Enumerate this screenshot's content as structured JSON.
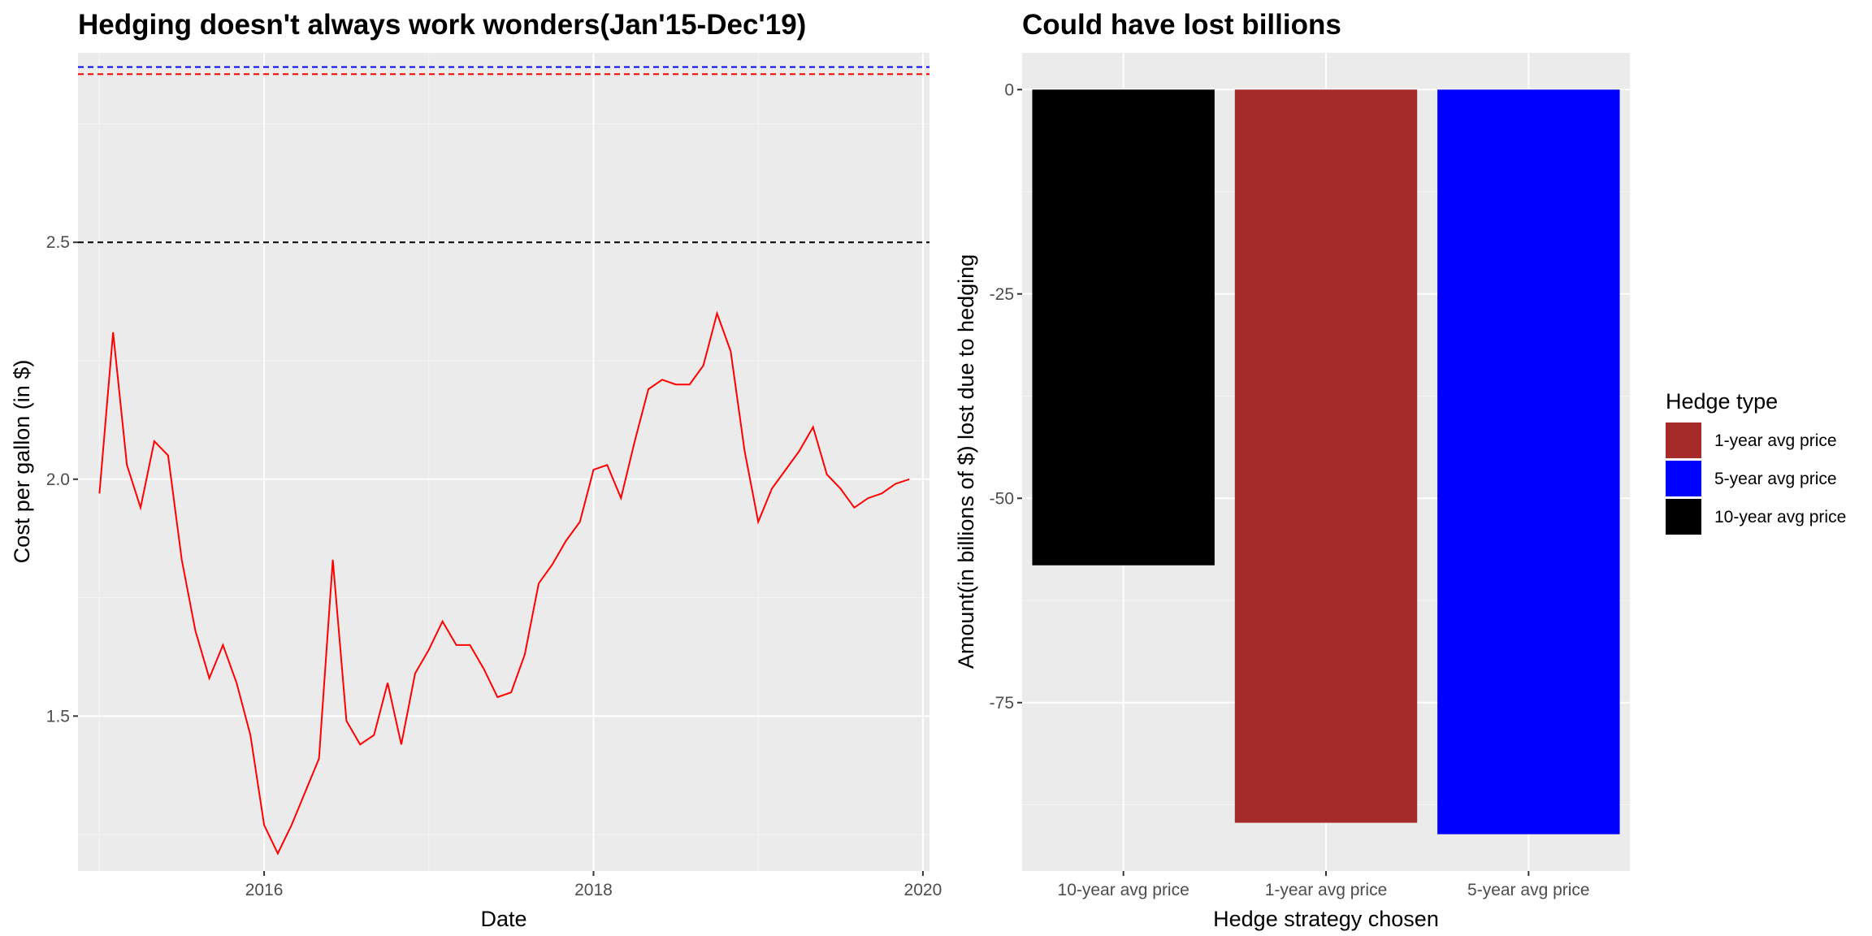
{
  "colors": {
    "panel": "#ebebeb",
    "grid_major": "#ffffff",
    "grid_minor": "#f5f5f5",
    "tick_text": "#4d4d4d",
    "tick_mark": "#333333"
  },
  "chart_data": [
    {
      "type": "line",
      "title": "Hedging doesn't always work wonders(Jan'15-Dec'19)",
      "xlabel": "Date",
      "ylabel": "Cost per gallon (in $)",
      "xlim": [
        2014.87,
        2020.04
      ],
      "ylim": [
        1.173,
        2.9
      ],
      "x_ticks": [
        2016,
        2018,
        2020
      ],
      "x_tick_labels": [
        "2016",
        "2018",
        "2020"
      ],
      "y_ticks": [
        1.5,
        2.0,
        2.5
      ],
      "y_tick_labels": [
        "1.5",
        "2.0",
        "2.5"
      ],
      "y_minor_ticks": [
        1.25,
        1.75,
        2.25,
        2.75
      ],
      "x_minor_ticks": [
        2015,
        2017,
        2019
      ],
      "grid": true,
      "line_color": "#ff0000",
      "x": [
        2015.0,
        2015.083,
        2015.167,
        2015.25,
        2015.333,
        2015.417,
        2015.5,
        2015.583,
        2015.667,
        2015.75,
        2015.833,
        2015.917,
        2016.0,
        2016.083,
        2016.167,
        2016.25,
        2016.333,
        2016.417,
        2016.5,
        2016.583,
        2016.667,
        2016.75,
        2016.833,
        2016.917,
        2017.0,
        2017.083,
        2017.167,
        2017.25,
        2017.333,
        2017.417,
        2017.5,
        2017.583,
        2017.667,
        2017.75,
        2017.833,
        2017.917,
        2018.0,
        2018.083,
        2018.167,
        2018.25,
        2018.333,
        2018.417,
        2018.5,
        2018.583,
        2018.667,
        2018.75,
        2018.833,
        2018.917,
        2019.0,
        2019.083,
        2019.167,
        2019.25,
        2019.333,
        2019.417,
        2019.5,
        2019.583,
        2019.667,
        2019.75,
        2019.833,
        2019.917
      ],
      "y": [
        1.97,
        2.31,
        2.03,
        1.94,
        2.08,
        2.05,
        1.83,
        1.68,
        1.58,
        1.65,
        1.57,
        1.46,
        1.27,
        1.21,
        1.27,
        1.34,
        1.41,
        1.83,
        1.49,
        1.44,
        1.46,
        1.57,
        1.44,
        1.59,
        1.64,
        1.7,
        1.65,
        1.65,
        1.6,
        1.54,
        1.55,
        1.63,
        1.78,
        1.82,
        1.87,
        1.91,
        2.02,
        2.03,
        1.96,
        2.08,
        2.19,
        2.21,
        2.2,
        2.2,
        2.24,
        2.35,
        2.27,
        2.06,
        1.91,
        1.98,
        2.02,
        2.06,
        2.11,
        2.01,
        1.98,
        1.94,
        1.96,
        1.97,
        1.99,
        2.0
      ],
      "hlines": [
        {
          "y": 2.5,
          "color": "#000000"
        },
        {
          "y": 2.87,
          "color": "#0000ff"
        },
        {
          "y": 2.855,
          "color": "#ff0000"
        }
      ]
    },
    {
      "type": "bar",
      "title": "Could have lost billions",
      "xlabel": "Hedge strategy chosen",
      "ylabel": "Amount(in billions of $) lost due to hedging",
      "categories": [
        "10-year avg price",
        "1-year avg price",
        "5-year avg price"
      ],
      "values": [
        -58.2,
        -89.7,
        -91.1
      ],
      "bar_colors": [
        "#000000",
        "#a52a2a",
        "#0000ff"
      ],
      "ylim": [
        -95.6,
        4.5
      ],
      "y_ticks": [
        0,
        -25,
        -50,
        -75
      ],
      "y_tick_labels": [
        "0",
        "-25",
        "-50",
        "-75"
      ],
      "y_minor_ticks": [
        -12.5,
        -37.5,
        -62.5,
        -87.5
      ],
      "grid": true,
      "legend": {
        "title": "Hedge type",
        "placement": "right",
        "items": [
          {
            "label": "1-year avg price",
            "color": "#a52a2a"
          },
          {
            "label": "5-year avg price",
            "color": "#0000ff"
          },
          {
            "label": "10-year avg price",
            "color": "#000000"
          }
        ]
      }
    }
  ]
}
